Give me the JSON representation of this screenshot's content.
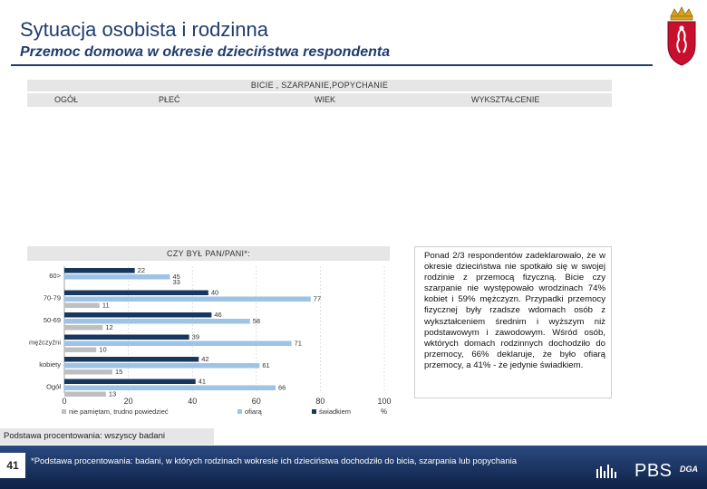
{
  "header": {
    "title": "Sytuacja osobista i rodzinna",
    "subtitle": "Przemoc domowa w okresie dzieciństwa respondenta"
  },
  "filter_band": {
    "title": "BICIE , SZARPANIE,POPYCHANIE",
    "columns": [
      "OGÓŁ",
      "PŁEĆ",
      "WIEK",
      "WYKSZTAŁCENIE"
    ]
  },
  "chart_data": {
    "type": "bar",
    "orientation": "horizontal",
    "title": "CZY BYŁ PAN/PANI*:",
    "categories": [
      "60>",
      "70-79",
      "50-69",
      "mężczyźni",
      "kobiety",
      "Ogół"
    ],
    "series": [
      {
        "name": "świadkiem",
        "color": "#17375e",
        "values": [
          22,
          45,
          46,
          39,
          42,
          41
        ]
      },
      {
        "name": "ofiarą",
        "color": "#9dc3e6",
        "values": [
          33,
          77,
          58,
          71,
          61,
          66
        ]
      },
      {
        "name": "nie pamiętam, trudno powiedzieć",
        "color": "#bfbfbf",
        "values": [
          0,
          11,
          12,
          10,
          15,
          13
        ]
      }
    ],
    "bar_labels": [
      [
        "22",
        "45",
        ""
      ],
      [
        "40",
        "77",
        "11"
      ],
      [
        "46",
        "58",
        "12"
      ],
      [
        "39",
        "71",
        "10"
      ],
      [
        "42",
        "61",
        "15"
      ],
      [
        "41",
        "66",
        "13"
      ]
    ],
    "extra_labels": [
      "33"
    ],
    "xlim": [
      0,
      100
    ],
    "xticks": [
      "0",
      "20",
      "40",
      "60",
      "80",
      "100"
    ],
    "unit": "%",
    "legend": [
      "nie pamiętam, trudno powiedzieć",
      "ofiarą",
      "świadkiem"
    ],
    "legend_position": "bottom"
  },
  "note": {
    "text": "Ponad 2/3 respondentów zadeklarowało, że w okresie dzieciństwa nie spotkało się w swojej rodzinie z przemocą fizyczną. Bicie czy szarpanie nie występowało wrodzinach 74% kobiet i 59% mężczyzn. Przypadki przemocy fizycznej były rzadsze wdomach osób z wykształceniem średnim i wyższym niż podstawowym i zawodowym. Wśród osób, wktórych domach rodzinnych dochodziło do przemocy, 66% deklaruje, że było ofiarą przemocy, a 41% - że jedynie świadkiem."
  },
  "footer": {
    "base": "Podstawa procentowania: wszyscy badani",
    "page_number": "41",
    "footnote": "*Podstawa procentowania: badani, w których rodzinach wokresie ich dzieciństwa dochodziło do bicia, szarpania lub popychania",
    "brand": "PBS",
    "brand_sub": "DGA"
  },
  "colors": {
    "title": "#1f3c6e",
    "footer": "#17326a",
    "band": "#e6e6e6",
    "crest_red": "#c8102e"
  },
  "icons": {
    "crest": "warsaw-crest-icon"
  }
}
